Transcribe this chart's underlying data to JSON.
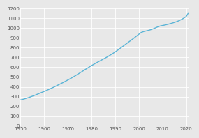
{
  "years": [
    1950,
    1951,
    1952,
    1953,
    1954,
    1955,
    1956,
    1957,
    1958,
    1959,
    1960,
    1961,
    1962,
    1963,
    1964,
    1965,
    1966,
    1967,
    1968,
    1969,
    1970,
    1971,
    1972,
    1973,
    1974,
    1975,
    1976,
    1977,
    1978,
    1979,
    1980,
    1981,
    1982,
    1983,
    1984,
    1985,
    1986,
    1987,
    1988,
    1989,
    1990,
    1991,
    1992,
    1993,
    1994,
    1995,
    1996,
    1997,
    1998,
    1999,
    2000,
    2001,
    2002,
    2003,
    2004,
    2005,
    2006,
    2007,
    2008,
    2009,
    2010,
    2011,
    2012,
    2013,
    2014,
    2015,
    2016,
    2017,
    2018,
    2019,
    2020,
    2021
  ],
  "population": [
    266,
    272,
    279,
    287,
    295,
    304,
    313,
    323,
    333,
    343,
    353,
    363,
    374,
    385,
    396,
    408,
    420,
    432,
    444,
    457,
    470,
    483,
    497,
    511,
    526,
    541,
    556,
    572,
    587,
    602,
    617,
    631,
    645,
    658,
    671,
    684,
    697,
    711,
    726,
    741,
    757,
    774,
    792,
    810,
    828,
    846,
    864,
    882,
    900,
    919,
    938,
    956,
    965,
    971,
    977,
    984,
    993,
    1003,
    1014,
    1022,
    1027,
    1032,
    1038,
    1044,
    1051,
    1059,
    1067,
    1077,
    1089,
    1103,
    1120,
    1160
  ],
  "line_color": "#5ab4d6",
  "background_color": "#e8e8e8",
  "grid_color": "#ffffff",
  "xlim": [
    1950,
    2021
  ],
  "ylim": [
    0,
    1200
  ],
  "xticks": [
    1950,
    1960,
    1970,
    1980,
    1990,
    2000,
    2010,
    2020
  ],
  "yticks": [
    0,
    100,
    200,
    300,
    400,
    500,
    600,
    700,
    800,
    900,
    1000,
    1100,
    1200
  ],
  "tick_fontsize": 5.0,
  "line_width": 1.0
}
